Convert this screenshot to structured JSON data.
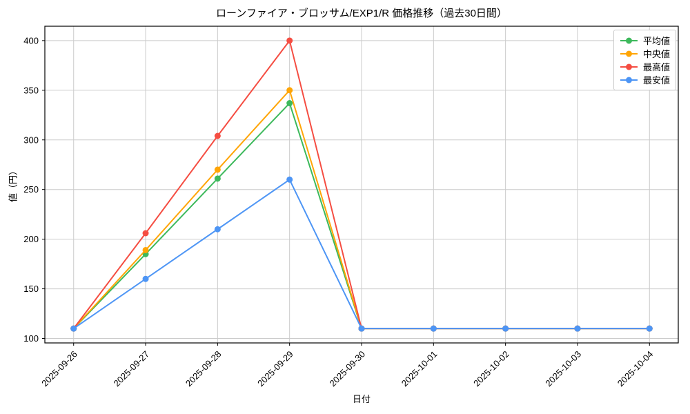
{
  "chart_data": {
    "type": "line",
    "title": "ローンファイア・ブロッサム/EXP1/R 価格推移（過去30日間）",
    "xlabel": "日付",
    "ylabel": "値（円）",
    "categories": [
      "2025-09-26",
      "2025-09-27",
      "2025-09-28",
      "2025-09-29",
      "2025-09-30",
      "2025-10-01",
      "2025-10-02",
      "2025-10-03",
      "2025-10-04"
    ],
    "series": [
      {
        "key": "mean",
        "name": "平均値",
        "color": "#3db95c",
        "values": [
          110,
          185,
          261,
          337,
          110,
          110,
          110,
          110,
          110
        ]
      },
      {
        "key": "median",
        "name": "中央値",
        "color": "#ffa505",
        "values": [
          110,
          189,
          270,
          350,
          110,
          110,
          110,
          110,
          110
        ]
      },
      {
        "key": "max",
        "name": "最高値",
        "color": "#f54d42",
        "values": [
          110,
          206,
          304,
          400,
          110,
          110,
          110,
          110,
          110
        ]
      },
      {
        "key": "min",
        "name": "最安値",
        "color": "#4d95f5",
        "values": [
          110,
          160,
          210,
          260,
          110,
          110,
          110,
          110,
          110
        ]
      }
    ],
    "y_ticks": [
      100,
      150,
      200,
      250,
      300,
      350,
      400
    ],
    "ylim": [
      95.5,
      414.5
    ],
    "x_margin": 0.4,
    "grid": true,
    "grid_color": "#cbcbcb",
    "axis_color": "#000000",
    "legend_position": "upper right",
    "x_tick_rotation_deg": 45
  }
}
